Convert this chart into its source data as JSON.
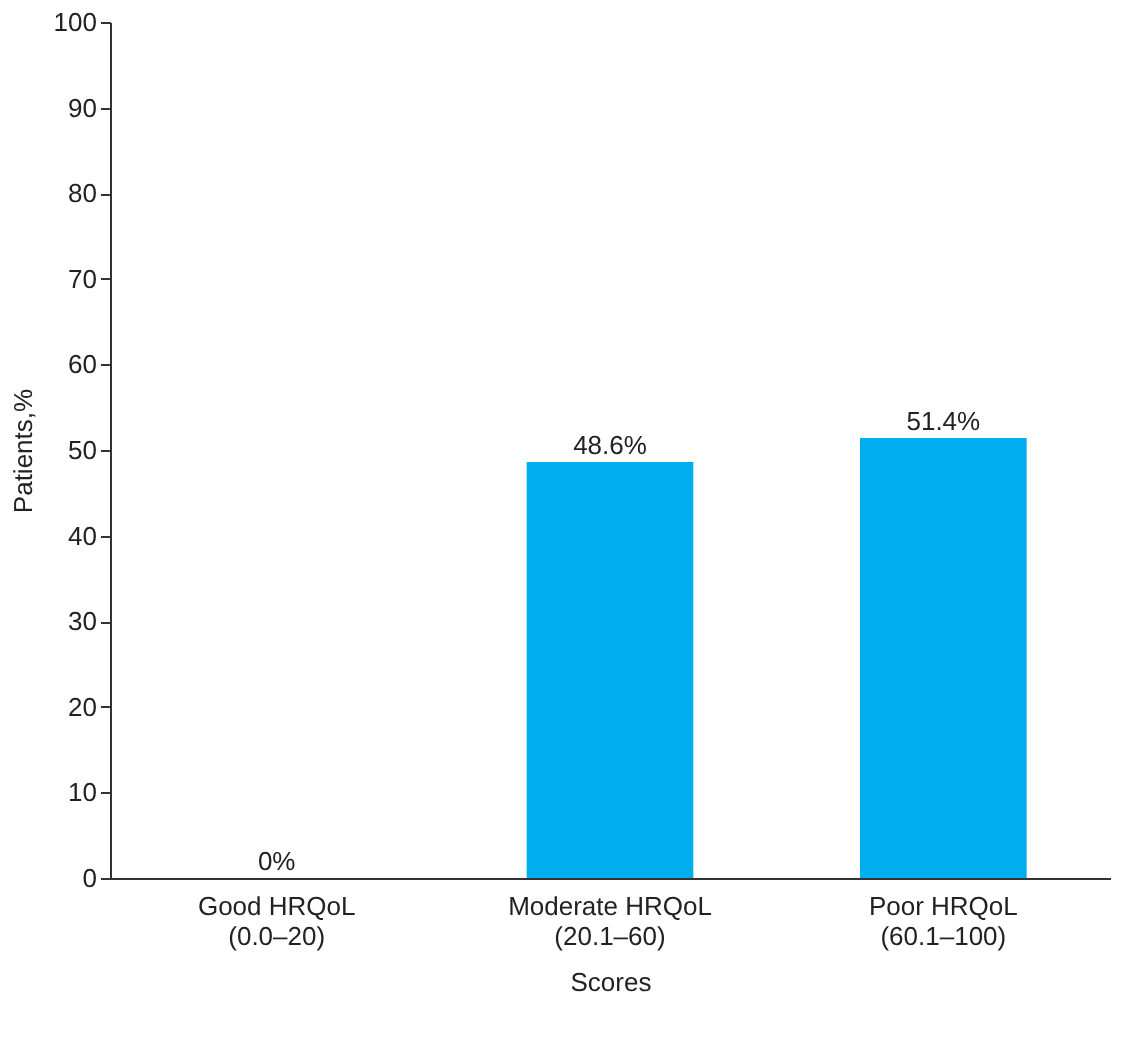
{
  "chart_data": {
    "type": "bar",
    "xlabel": "Scores",
    "ylabel": "Patients,%",
    "categories": [
      "Good HRQoL\n(0.0–20)",
      "Moderate HRQoL\n(20.1–60)",
      "Poor HRQoL\n(60.1–100)"
    ],
    "values": [
      0,
      48.6,
      51.4
    ],
    "value_labels": [
      "0%",
      "48.6%",
      "51.4%"
    ],
    "color": "#00aeef",
    "ylim": [
      0,
      100
    ],
    "yticks": [
      0,
      10,
      20,
      30,
      40,
      50,
      60,
      70,
      80,
      90,
      100
    ],
    "grid": false
  }
}
